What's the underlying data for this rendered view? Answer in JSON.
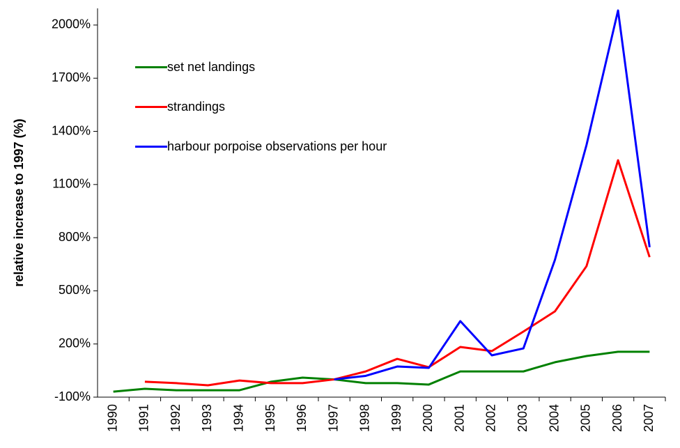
{
  "chart_data": {
    "type": "line",
    "categories": [
      "1990",
      "1991",
      "1992",
      "1993",
      "1994",
      "1995",
      "1996",
      "1997",
      "1998",
      "1999",
      "2000",
      "2001",
      "2002",
      "2003",
      "2004",
      "2005",
      "2006",
      "2007"
    ],
    "y_label": "relative increase to 1997 (%)",
    "series": [
      {
        "name": "set net landings",
        "color": "#008000",
        "values": [
          -69,
          -53,
          -61,
          -61,
          -61,
          -13,
          10,
          0,
          -21,
          -21,
          -29,
          45,
          45,
          45,
          97,
          132,
          156,
          156
        ]
      },
      {
        "name": "strandings",
        "color": "#ff0000",
        "values": [
          null,
          -13,
          -21,
          -33,
          -6,
          -21,
          -21,
          0,
          45,
          116,
          69,
          183,
          160,
          270,
          384,
          639,
          1237,
          690
        ]
      },
      {
        "name": "harbour porpoise observations per hour",
        "color": "#0000ff",
        "values": [
          null,
          null,
          null,
          null,
          null,
          null,
          null,
          0,
          20,
          73,
          65,
          329,
          136,
          175,
          675,
          1323,
          2082,
          746
        ]
      }
    ],
    "ylim": [
      -100,
      2100
    ],
    "yticks": [
      {
        "value": -100,
        "label": "-100%"
      },
      {
        "value": 200,
        "label": "200%"
      },
      {
        "value": 500,
        "label": "500%"
      },
      {
        "value": 800,
        "label": "800%"
      },
      {
        "value": 1100,
        "label": "1100%"
      },
      {
        "value": 1400,
        "label": "1400%"
      },
      {
        "value": 1700,
        "label": "1700%"
      },
      {
        "value": 2000,
        "label": "2000%"
      }
    ]
  }
}
